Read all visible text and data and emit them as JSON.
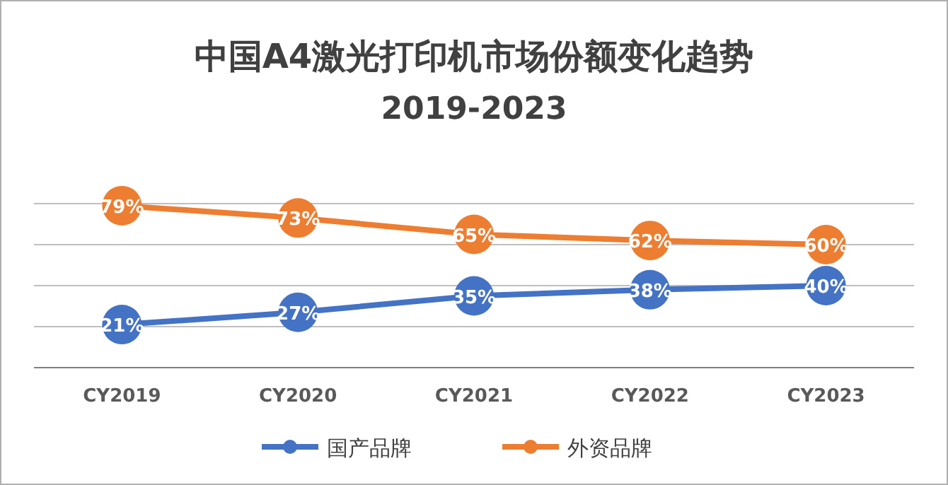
{
  "chart_data": {
    "type": "line",
    "title": "中国A4激光打印机市场份额变化趋势",
    "subtitle": "2019-2023",
    "categories": [
      "CY2019",
      "CY2020",
      "CY2021",
      "CY2022",
      "CY2023"
    ],
    "series": [
      {
        "name": "国产品牌",
        "color": "#4472c4",
        "values": [
          21,
          27,
          35,
          38,
          40
        ],
        "value_labels": [
          "21%",
          "27%",
          "35%",
          "38%",
          "40%"
        ]
      },
      {
        "name": "外资品牌",
        "color": "#ed7d31",
        "values": [
          79,
          73,
          65,
          62,
          60
        ],
        "value_labels": [
          "79%",
          "73%",
          "65%",
          "62%",
          "60%"
        ]
      }
    ],
    "ylim": [
      0,
      80
    ],
    "yticks": [
      {
        "value": 20,
        "label": null
      },
      {
        "value": 40,
        "label": null
      },
      {
        "value": 60,
        "label": null
      },
      {
        "value": 80,
        "label": null
      }
    ],
    "tick_labels": "x",
    "grid": "y",
    "legend": "bottom",
    "marker": "circle",
    "line_style": "solid"
  }
}
